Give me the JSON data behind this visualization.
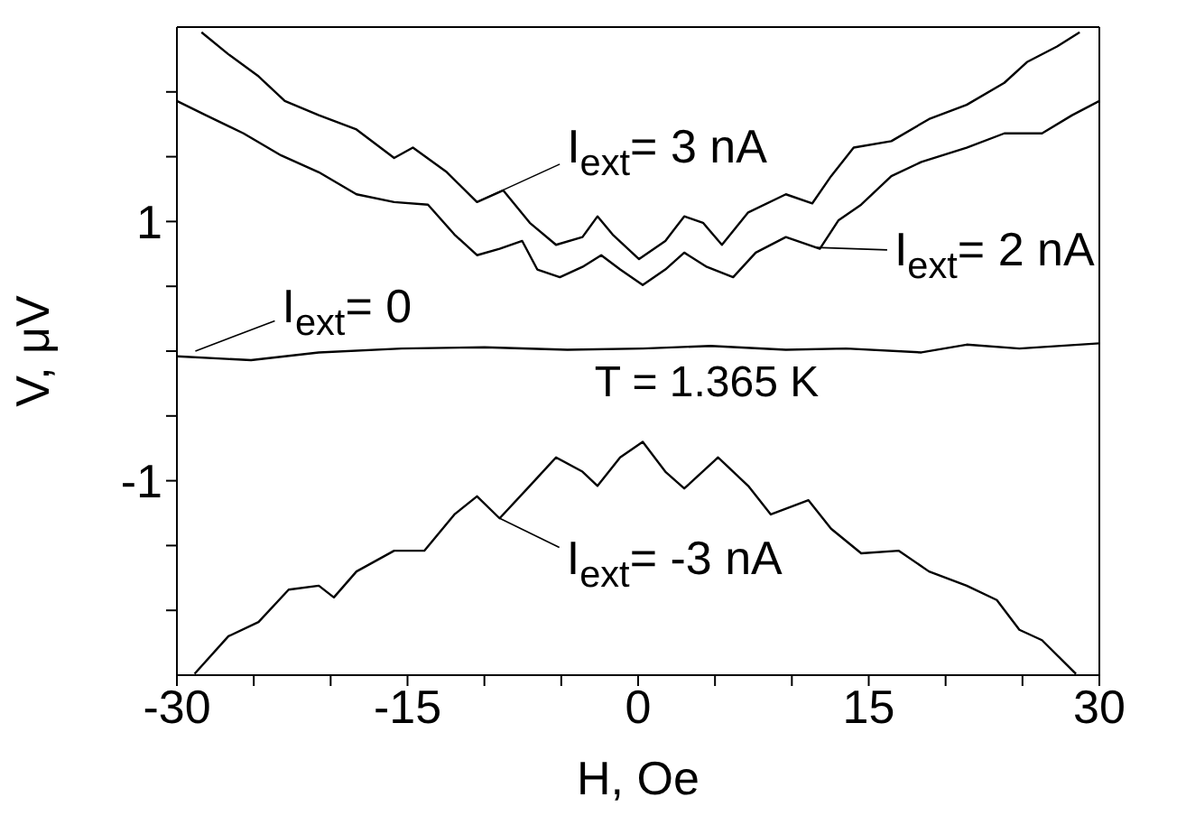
{
  "chart_data": {
    "type": "line",
    "xlabel": "H, Oe",
    "ylabel": "V, μV",
    "xlim": [
      -30,
      30
    ],
    "ylim": [
      -2.5,
      2.5
    ],
    "xticks": [
      -30,
      {
        "value": -25,
        "label": null
      },
      {
        "value": -20,
        "label": null
      },
      -15,
      {
        "value": -10,
        "label": null
      },
      {
        "value": -5,
        "label": null
      },
      0,
      {
        "value": 5,
        "label": null
      },
      {
        "value": 10,
        "label": null
      },
      15,
      {
        "value": 20,
        "label": null
      },
      {
        "value": 25,
        "label": null
      },
      30
    ],
    "yticks": [
      {
        "value": -2,
        "label": null
      },
      {
        "value": -1.5,
        "label": null
      },
      -1,
      {
        "value": -0.5,
        "label": null
      },
      {
        "value": 0,
        "label": null
      },
      {
        "value": 0.5,
        "label": null
      },
      1,
      {
        "value": 1.5,
        "label": null
      },
      {
        "value": 2,
        "label": null
      }
    ],
    "marker": "none",
    "line_style": "solid",
    "series": [
      {
        "color": "#000000",
        "x": [
          -28.4,
          -26.65,
          -24.69,
          -22.98,
          -20.77,
          -18.32,
          -15.87,
          -14.65,
          -12.44,
          -10.48,
          -8.77,
          -7.05,
          -5.34,
          -3.62,
          -2.64,
          -1.66,
          0.06,
          1.77,
          3.0,
          4.22,
          5.45,
          7.16,
          9.61,
          11.33,
          12.55,
          14.02,
          16.47,
          18.92,
          21.37,
          23.82,
          25.29,
          27.25,
          28.72
        ],
        "values": [
          2.46,
          2.29,
          2.12,
          1.93,
          1.82,
          1.71,
          1.49,
          1.57,
          1.38,
          1.15,
          1.24,
          0.99,
          0.82,
          0.88,
          1.04,
          0.9,
          0.71,
          0.85,
          1.04,
          0.99,
          0.82,
          1.07,
          1.21,
          1.14,
          1.35,
          1.57,
          1.62,
          1.79,
          1.9,
          2.07,
          2.23,
          2.35,
          2.46
        ]
      },
      {
        "color": "#000000",
        "x": [
          -30,
          -28.12,
          -25.67,
          -23.22,
          -20.77,
          -18.32,
          -15.87,
          -13.67,
          -11.95,
          -10.48,
          -9.01,
          -7.54,
          -6.56,
          -5.09,
          -3.62,
          -2.4,
          -1.17,
          0.3,
          1.77,
          3.0,
          4.47,
          6.18,
          7.65,
          9.61,
          11.82,
          13.04,
          14.51,
          16.47,
          18.43,
          21.37,
          23.82,
          26.27,
          28.23,
          30
        ],
        "values": [
          1.93,
          1.82,
          1.68,
          1.51,
          1.38,
          1.21,
          1.15,
          1.13,
          0.9,
          0.74,
          0.79,
          0.85,
          0.63,
          0.57,
          0.65,
          0.74,
          0.63,
          0.51,
          0.63,
          0.76,
          0.65,
          0.57,
          0.76,
          0.88,
          0.79,
          1.01,
          1.13,
          1.35,
          1.46,
          1.57,
          1.68,
          1.68,
          1.82,
          1.93
        ]
      },
      {
        "color": "#000000",
        "x": [
          -30,
          -25.18,
          -20.77,
          -15.38,
          -9.99,
          -4.6,
          0.3,
          4.71,
          9.61,
          13.53,
          18.43,
          21.37,
          24.8,
          30
        ],
        "values": [
          -0.04,
          -0.07,
          -0.01,
          0.02,
          0.03,
          0.01,
          0.02,
          0.04,
          0.01,
          0.02,
          -0.01,
          0.05,
          0.02,
          0.06
        ]
      },
      {
        "color": "#000000",
        "x": [
          -28.85,
          -26.65,
          -24.69,
          -22.73,
          -20.77,
          -19.79,
          -18.32,
          -15.87,
          -13.91,
          -11.95,
          -10.48,
          -9.01,
          -7.05,
          -5.34,
          -3.62,
          -2.64,
          -1.17,
          0.3,
          1.77,
          3.0,
          5.2,
          7.16,
          8.63,
          11.08,
          12.55,
          14.51,
          16.96,
          18.92,
          21.37,
          23.33,
          24.8,
          26.27,
          28.48
        ],
        "values": [
          -2.49,
          -2.2,
          -2.09,
          -1.84,
          -1.81,
          -1.9,
          -1.7,
          -1.54,
          -1.54,
          -1.26,
          -1.12,
          -1.29,
          -1.04,
          -0.82,
          -0.93,
          -1.04,
          -0.82,
          -0.7,
          -0.93,
          -1.06,
          -0.82,
          -1.04,
          -1.26,
          -1.15,
          -1.37,
          -1.56,
          -1.54,
          -1.7,
          -1.81,
          -1.92,
          -2.15,
          -2.23,
          -2.49
        ]
      }
    ],
    "annotations": [
      {
        "text": "I$_{ext}$= 3 nA",
        "x": -10.5,
        "y": 1.15
      },
      {
        "text": "I$_{ext}$= 2 nA",
        "x": 11.5,
        "y": 0.8
      },
      {
        "text": "I$_{ext}$= 0",
        "x": -28.8,
        "y": 0
      },
      {
        "text": "I$_{ext}$= -3 nA",
        "x": -9,
        "y": -1.29
      },
      "T = 1.365 K"
    ]
  }
}
